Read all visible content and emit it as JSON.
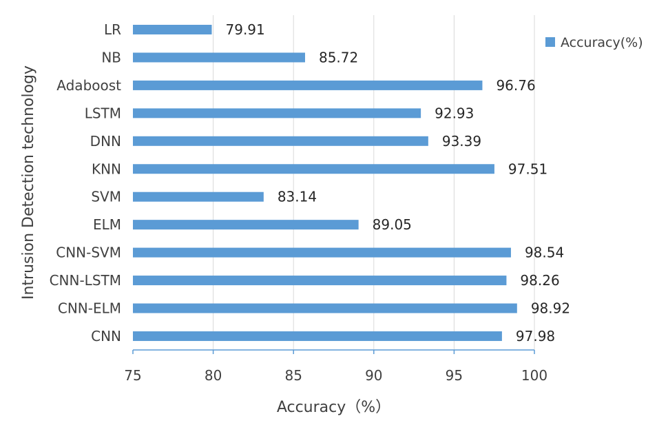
{
  "chart_data": {
    "type": "bar",
    "orientation": "horizontal",
    "categories": [
      "LR",
      "NB",
      "Adaboost",
      "LSTM",
      "DNN",
      "KNN",
      "SVM",
      "ELM",
      "CNN-SVM",
      "CNN-LSTM",
      "CNN-ELM",
      "CNN"
    ],
    "series": [
      {
        "name": "Accuracy(%)",
        "values": [
          79.91,
          85.72,
          96.76,
          92.93,
          93.39,
          97.51,
          83.14,
          89.05,
          98.54,
          98.26,
          98.92,
          97.98
        ]
      }
    ],
    "value_labels": [
      "79.91",
      "85.72",
      "96.76",
      "92.93",
      "93.39",
      "97.51",
      "83.14",
      "89.05",
      "98.54",
      "98.26",
      "98.92",
      "97.98"
    ],
    "xlabel": "Accuracy（%）",
    "ylabel": "Intrusion Detection  technology",
    "xlim": [
      75,
      100
    ],
    "xticks": [
      "75",
      "80",
      "85",
      "90",
      "95",
      "100"
    ],
    "grid": "vertical",
    "legend_position": "top-right",
    "bar_color": "#5B9BD5"
  }
}
